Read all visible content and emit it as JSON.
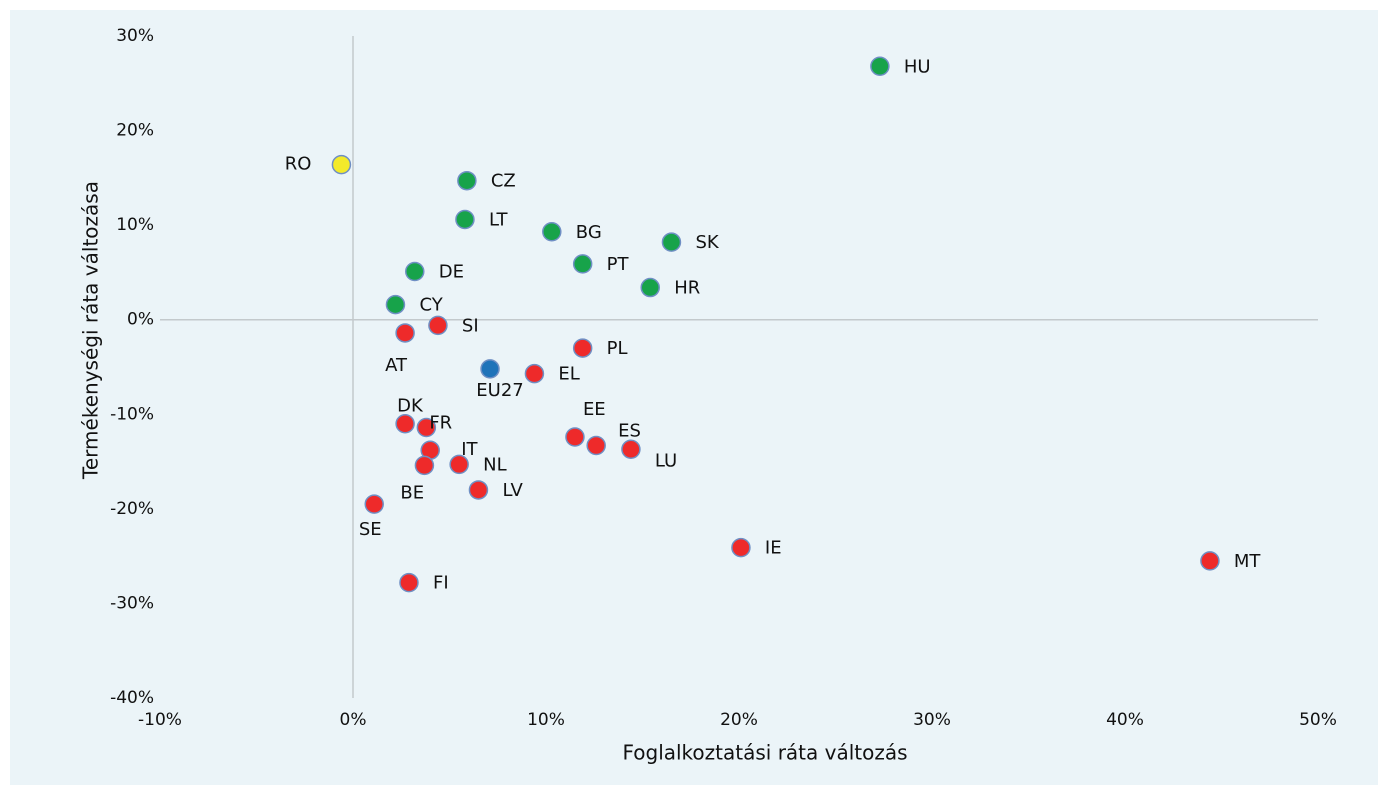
{
  "chart_data": {
    "type": "scatter",
    "xlabel": "Foglalkoztatási ráta változás",
    "ylabel": "Termékenységi ráta változása",
    "labels": [
      "HU",
      "RO",
      "CZ",
      "LT",
      "BG",
      "SK",
      "PT",
      "DE",
      "HR",
      "CY",
      "SI",
      "AT",
      "PL",
      "EU27",
      "EL",
      "DK",
      "FR",
      "IT",
      "NL",
      "BE",
      "SE",
      "LV",
      "EE",
      "ES",
      "LU",
      "IE",
      "MT",
      "FI"
    ],
    "x": [
      27.3,
      -0.6,
      5.9,
      5.8,
      10.3,
      16.5,
      11.9,
      3.2,
      15.4,
      2.2,
      4.4,
      2.7,
      11.9,
      7.1,
      9.4,
      2.7,
      3.8,
      4.0,
      5.5,
      3.7,
      1.1,
      6.5,
      11.5,
      12.6,
      14.4,
      20.1,
      44.4,
      2.9
    ],
    "y": [
      26.8,
      16.4,
      14.7,
      10.6,
      9.3,
      8.2,
      5.9,
      5.1,
      3.4,
      1.6,
      -0.6,
      -1.4,
      -3.0,
      -5.2,
      -5.7,
      -11.0,
      -11.4,
      -13.8,
      -15.3,
      -15.4,
      -19.5,
      -18.0,
      -12.4,
      -13.3,
      -13.7,
      -24.1,
      -25.5,
      -27.8
    ],
    "colors": [
      "#17a34a",
      "#f3ea2b",
      "#17a34a",
      "#17a34a",
      "#17a34a",
      "#17a34a",
      "#17a34a",
      "#17a34a",
      "#17a34a",
      "#17a34a",
      "#ee2a2a",
      "#ee2a2a",
      "#ee2a2a",
      "#1f73b9",
      "#ee2a2a",
      "#ee2a2a",
      "#ee2a2a",
      "#ee2a2a",
      "#ee2a2a",
      "#ee2a2a",
      "#ee2a2a",
      "#ee2a2a",
      "#ee2a2a",
      "#ee2a2a",
      "#ee2a2a",
      "#ee2a2a",
      "#ee2a2a",
      "#ee2a2a"
    ],
    "xlim": [
      -10,
      50
    ],
    "ylim": [
      -40,
      30
    ],
    "xticks": [
      {
        "value": -10,
        "label": "-10%"
      },
      {
        "value": 0,
        "label": "0%"
      },
      {
        "value": 10,
        "label": "10%"
      },
      {
        "value": 20,
        "label": "20%"
      },
      {
        "value": 30,
        "label": "30%"
      },
      {
        "value": 40,
        "label": "40%"
      },
      {
        "value": 50,
        "label": "50%"
      }
    ],
    "yticks": [
      {
        "value": -40,
        "label": "-40%"
      },
      {
        "value": -30,
        "label": "-30%"
      },
      {
        "value": -20,
        "label": "-20%"
      },
      {
        "value": -10,
        "label": "-10%"
      },
      {
        "value": 0,
        "label": "0%"
      },
      {
        "value": 10,
        "label": "10%"
      },
      {
        "value": 20,
        "label": "20%"
      },
      {
        "value": 30,
        "label": "30%"
      }
    ]
  }
}
